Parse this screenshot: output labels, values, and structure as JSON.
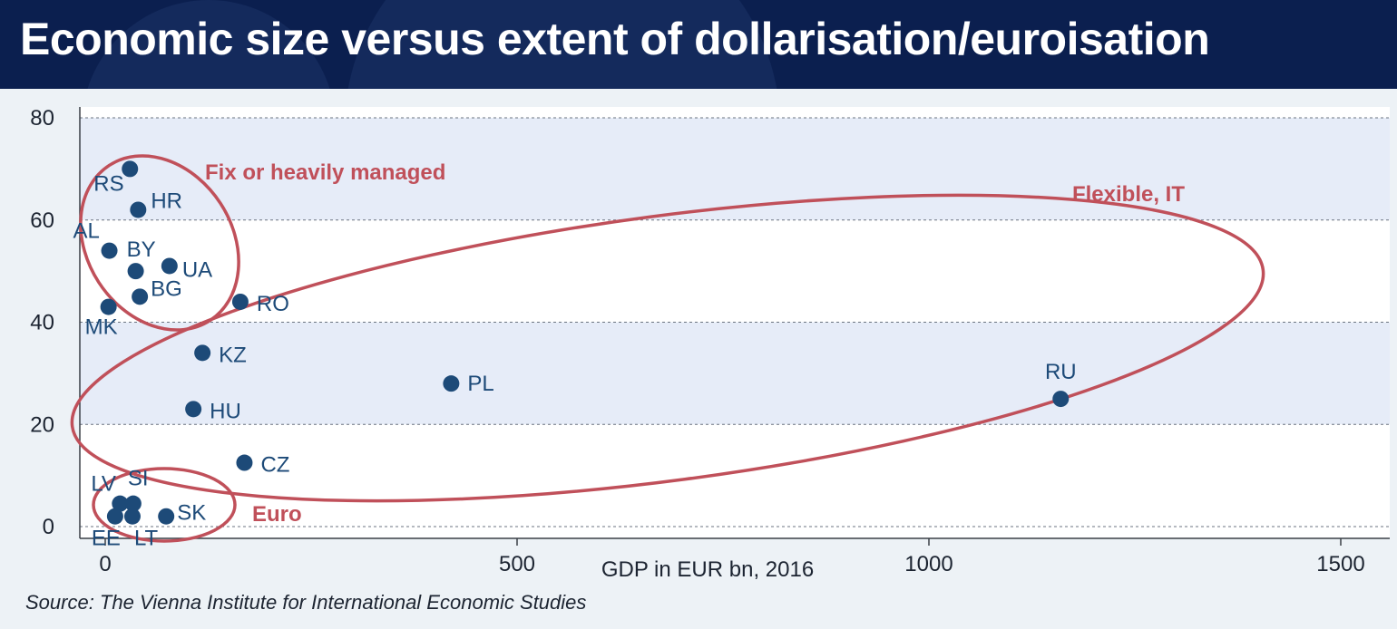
{
  "header": {
    "title": "Economic size versus extent of dollarisation/euroisation"
  },
  "source": "Source: The Vienna Institute for International Economic Studies",
  "colors": {
    "header_bg": "#0b1f4f",
    "point": "#1d4a78",
    "label": "#1d4a78",
    "group_outline": "#c0505a",
    "band": "#e6ecf8"
  },
  "chart_data": {
    "type": "scatter",
    "title": "Economic size versus extent of dollarisation/euroisation",
    "xlabel": "GDP in EUR bn, 2016",
    "ylabel": "",
    "xlim": [
      0,
      1500
    ],
    "ylim": [
      0,
      80
    ],
    "x_ticks": [
      0,
      500,
      1000,
      1500
    ],
    "y_ticks": [
      0,
      20,
      40,
      60,
      80
    ],
    "x_tick_labels": [
      "0",
      "500",
      "1000",
      "1500"
    ],
    "y_tick_labels": [
      "0",
      "20",
      "40",
      "60",
      "80"
    ],
    "grid": "horizontal dashed",
    "points": [
      {
        "label": "RS",
        "x": 30,
        "y": 70
      },
      {
        "label": "HR",
        "x": 40,
        "y": 62
      },
      {
        "label": "AL",
        "x": 5,
        "y": 54
      },
      {
        "label": "BY",
        "x": 37,
        "y": 50
      },
      {
        "label": "UA",
        "x": 78,
        "y": 51
      },
      {
        "label": "BG",
        "x": 42,
        "y": 45
      },
      {
        "label": "MK",
        "x": 4,
        "y": 43
      },
      {
        "label": "RO",
        "x": 164,
        "y": 44
      },
      {
        "label": "KZ",
        "x": 118,
        "y": 34
      },
      {
        "label": "HU",
        "x": 107,
        "y": 23
      },
      {
        "label": "PL",
        "x": 420,
        "y": 28
      },
      {
        "label": "RU",
        "x": 1160,
        "y": 25
      },
      {
        "label": "CZ",
        "x": 169,
        "y": 12.5
      },
      {
        "label": "LV",
        "x": 18,
        "y": 4.5
      },
      {
        "label": "SI",
        "x": 34,
        "y": 4.5
      },
      {
        "label": "EE",
        "x": 12,
        "y": 2
      },
      {
        "label": "LT",
        "x": 33,
        "y": 2
      },
      {
        "label": "SK",
        "x": 74,
        "y": 2
      }
    ],
    "groups": [
      {
        "name": "Fix or heavily managed"
      },
      {
        "name": "Flexible, IT"
      },
      {
        "name": "Euro"
      }
    ]
  }
}
